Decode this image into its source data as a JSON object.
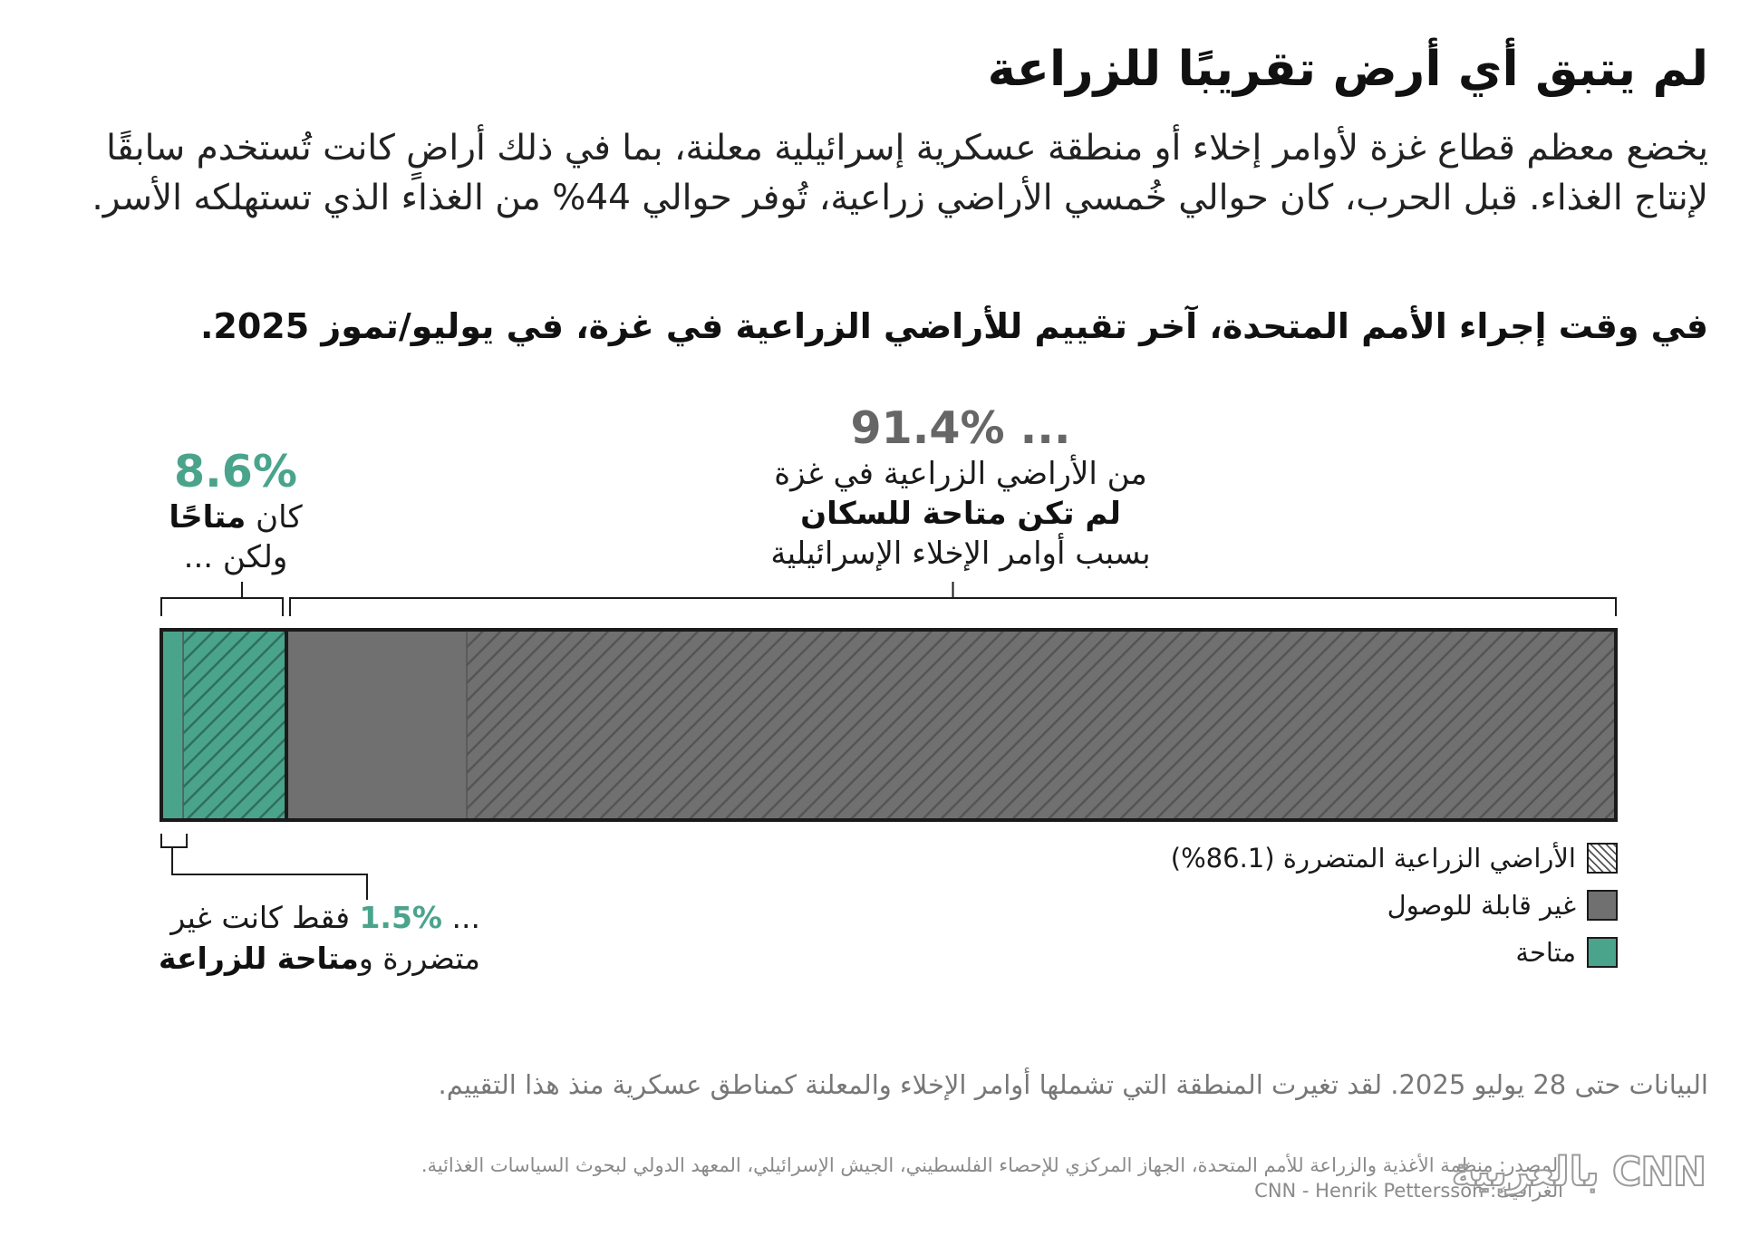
{
  "header": {
    "title": "لم يتبق أي أرض تقريبًا للزراعة",
    "intro": "يخضع معظم قطاع غزة لأوامر إخلاء أو منطقة عسكرية إسرائيلية معلنة، بما في ذلك أراضٍ كانت تُستخدم سابقًا لإنتاج الغذاء. قبل الحرب، كان حوالي خُمسي الأراضي زراعية، تُوفر حوالي 44% من الغذاء الذي تستهلكه الأسر.",
    "subtitle": "في وقت إجراء الأمم المتحدة، آخر تقييم للأراضي الزراعية في غزة، في يوليو/تموز 2025."
  },
  "chart_data": {
    "type": "bar",
    "orientation": "horizontal",
    "stacked": true,
    "unit": "%",
    "total": 100,
    "segments": [
      {
        "key": "available_undamaged",
        "category": "متاحة",
        "value": 1.5,
        "hatched": false,
        "color": "#4aa48c"
      },
      {
        "key": "available_damaged",
        "category": "متاحة",
        "value": 7.1,
        "hatched": true,
        "color": "#4aa48c"
      },
      {
        "key": "inaccessible_undamaged",
        "category": "غير قابلة للوصول",
        "value": 12.4,
        "hatched": false,
        "color": "#707070"
      },
      {
        "key": "inaccessible_damaged",
        "category": "غير قابلة للوصول",
        "value": 79.0,
        "hatched": true,
        "color": "#707070"
      }
    ],
    "groups": [
      {
        "key": "available",
        "value": 8.6
      },
      {
        "key": "inaccessible",
        "value": 91.4
      }
    ],
    "damaged_total": 86.1,
    "legend": {
      "position": "bottom-right",
      "items": [
        {
          "key": "damaged",
          "label": "الأراضي الزراعية المتضررة (86.1%)"
        },
        {
          "key": "inaccessible",
          "label": "غير قابلة للوصول"
        },
        {
          "key": "available",
          "label": "متاحة"
        }
      ]
    },
    "annotations": {
      "available": {
        "value_text": "8.6%",
        "line1_prefix": "كان ",
        "line1_bold": "متاحًا",
        "line2": "ولكن ..."
      },
      "inaccessible": {
        "value_text": "... 91.4%",
        "line1": "من الأراضي الزراعية في غزة",
        "line2_bold": "لم تكن متاحة للسكان",
        "line3": "بسبب أوامر الإخلاء الإسرائيلية"
      },
      "undamaged": {
        "prefix": "... ",
        "value_text": "1.5%",
        "line1_suffix": " فقط كانت غير",
        "line2_prefix": "متضررة و",
        "line2_bold": "متاحة للزراعة"
      }
    },
    "colors": {
      "available": "#4aa48c",
      "inaccessible": "#707070",
      "outline": "#1a1a1a",
      "hatch_dark": "#555555"
    }
  },
  "footer": {
    "note": "البيانات حتى 28 يوليو 2025. لقد تغيرت المنطقة التي تشملها أوامر الإخلاء والمعلنة كمناطق عسكرية منذ هذا التقييم.",
    "source": "المصدر: منظمة الأغذية والزراعة للأمم المتحدة، الجهاز المركزي للإحصاء الفلسطيني، الجيش الإسرائيلي، المعهد الدولي لبحوث السياسات الغذائية.",
    "credit": "الغرافيك: CNN - Henrik Pettersson",
    "logo_text": "CNN بالعربية"
  }
}
